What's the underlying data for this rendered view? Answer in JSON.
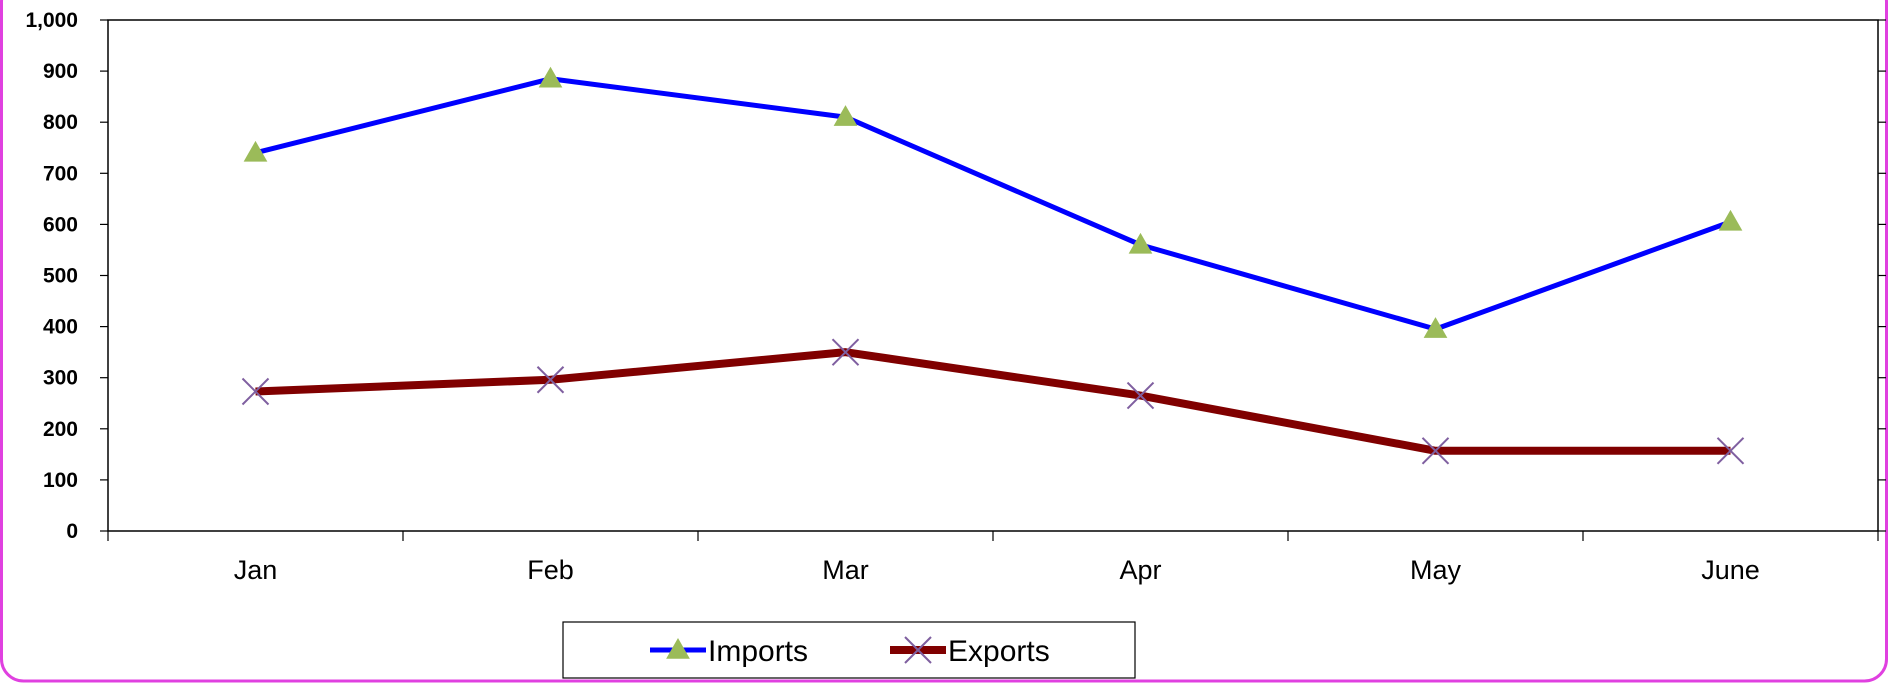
{
  "chart_data": {
    "type": "line",
    "categories": [
      "Jan",
      "Feb",
      "Mar",
      "Apr",
      "May",
      "June"
    ],
    "series": [
      {
        "name": "Imports",
        "values": [
          740,
          885,
          810,
          560,
          395,
          605
        ],
        "color": "#0000ff",
        "marker": "triangle",
        "marker_color": "#9bbb59"
      },
      {
        "name": "Exports",
        "values": [
          273,
          296,
          350,
          265,
          157,
          157
        ],
        "color": "#800000",
        "marker": "x",
        "marker_color": "#7f5fa0"
      }
    ],
    "y_ticks": [
      "0",
      "100",
      "200",
      "300",
      "400",
      "500",
      "600",
      "700",
      "800",
      "900",
      "1,000"
    ],
    "ylim": [
      0,
      1000
    ],
    "legend_position": "bottom",
    "grid": false
  },
  "colors": {
    "frame_border": "#e040e0",
    "axis": "#000000"
  }
}
